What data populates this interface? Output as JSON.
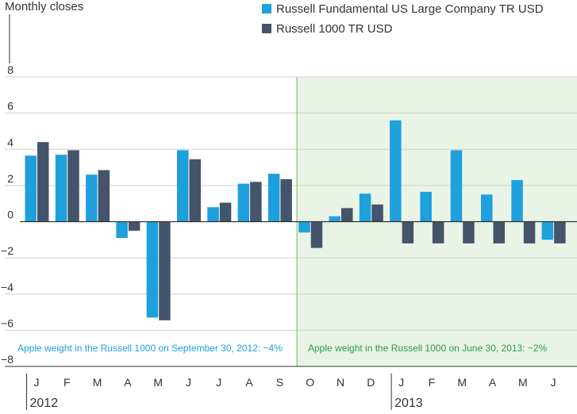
{
  "chart_data": {
    "type": "bar",
    "unit_label": "Monthly closes",
    "categories": [
      "J",
      "F",
      "M",
      "A",
      "M",
      "J",
      "J",
      "A",
      "S",
      "O",
      "N",
      "D",
      "J",
      "F",
      "M",
      "A",
      "M",
      "J"
    ],
    "year_labels": [
      {
        "label": "2012",
        "start_index": 0
      },
      {
        "label": "2013",
        "start_index": 12
      }
    ],
    "series": [
      {
        "name": "Russell Fundamental US Large Company TR USD",
        "color": "#1ea0dc",
        "values": [
          3.65,
          3.7,
          2.6,
          -0.9,
          -5.3,
          3.95,
          0.8,
          2.1,
          2.65,
          -0.6,
          0.3,
          1.55,
          5.6,
          1.65,
          3.95,
          1.5,
          2.3,
          -1.0
        ]
      },
      {
        "name": "Russell 1000 TR USD",
        "color": "#44546a",
        "values": [
          4.4,
          3.95,
          2.85,
          -0.5,
          -5.45,
          3.45,
          1.05,
          2.2,
          2.35,
          -1.45,
          0.75,
          0.95,
          -1.2,
          -1.2,
          -1.2,
          -1.2,
          -1.2,
          -1.2
        ]
      }
    ],
    "yticks": [
      8,
      6,
      4,
      2,
      0,
      -2,
      -4,
      -6,
      -8
    ],
    "ytick_labels": [
      "8",
      "6",
      "4",
      "2",
      "0",
      "−2",
      "−4",
      "−6",
      "−8"
    ],
    "ylim": [
      -8,
      8
    ],
    "grid": true,
    "shaded_region": {
      "start_index": 9,
      "end_index": 17,
      "color": "#eaf4e6",
      "border_color": "#9ccf8c"
    },
    "annotations": [
      {
        "text": "Apple weight in the Russell 1000 on September 30, 2012: ~4%",
        "color": "#1ea0dc"
      },
      {
        "text": "Apple weight in the Russell 1000 on June 30, 2013: ~2%",
        "color": "#2a9a43"
      }
    ],
    "legend_position": "top-right"
  }
}
